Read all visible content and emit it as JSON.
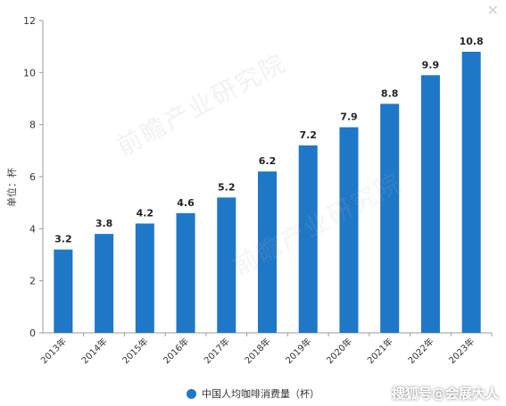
{
  "chart_data": {
    "type": "bar",
    "categories": [
      "2013年",
      "2014年",
      "2015年",
      "2016年",
      "2017年",
      "2018年",
      "2019年",
      "2020年",
      "2021年",
      "2022年",
      "2023年"
    ],
    "values": [
      3.2,
      3.8,
      4.2,
      4.6,
      5.2,
      6.2,
      7.2,
      7.9,
      8.8,
      9.9,
      10.8
    ],
    "series": [
      {
        "name": "中国人均咖啡消费量（杯）",
        "values": [
          3.2,
          3.8,
          4.2,
          4.6,
          5.2,
          6.2,
          7.2,
          7.9,
          8.8,
          9.9,
          10.8
        ]
      }
    ],
    "title": "",
    "xlabel": "",
    "ylabel": "单位：杯",
    "ylim": [
      0,
      12
    ],
    "yticks": [
      0,
      2,
      4,
      6,
      8,
      10,
      12
    ],
    "grid": false,
    "legend_position": "bottom-center",
    "bar_color": "#1f77c8"
  },
  "legend": {
    "label": "中国人均咖啡消费量（杯）",
    "color": "#1f77c8"
  },
  "brand": {
    "text": "搜狐号@会展大人"
  },
  "corner_icon": {
    "name": "close-icon",
    "glyph": "✕"
  }
}
